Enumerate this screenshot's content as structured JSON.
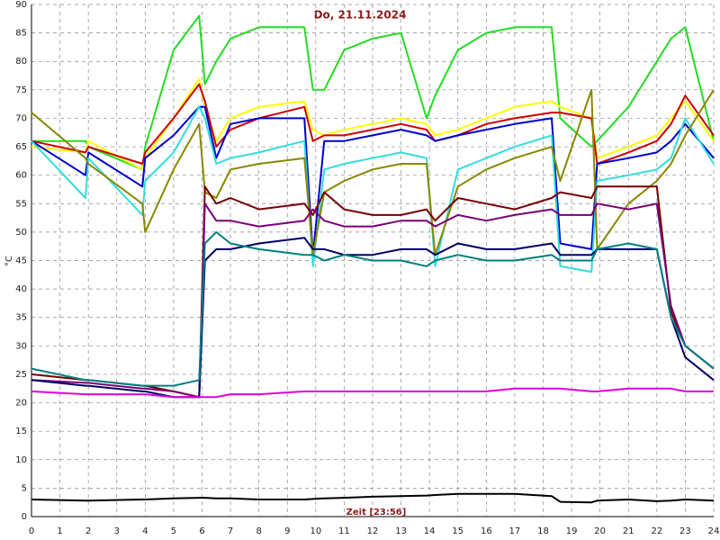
{
  "chart_data": {
    "type": "line",
    "title": "Do, 21.11.2024",
    "xlabel": "Zeit [23:56]",
    "ylabel": "°C",
    "grid": true,
    "x": [
      0,
      1.9,
      2,
      3.9,
      4,
      5,
      5.9,
      6.1,
      6.5,
      7,
      8,
      9.6,
      9.9,
      10.3,
      11,
      12,
      13,
      13.9,
      14.2,
      15,
      16,
      17,
      18.3,
      18.6,
      19.7,
      19.9,
      21,
      22,
      22.5,
      23,
      24
    ],
    "xlim": [
      0,
      24
    ],
    "xticks": [
      0,
      1,
      2,
      3,
      4,
      5,
      6,
      7,
      8,
      9,
      10,
      11,
      12,
      13,
      14,
      15,
      16,
      17,
      18,
      19,
      20,
      21,
      22,
      23,
      24
    ],
    "ylim": [
      0,
      90
    ],
    "yticks": [
      0,
      5,
      10,
      15,
      20,
      25,
      30,
      35,
      40,
      45,
      50,
      55,
      60,
      65,
      70,
      75,
      80,
      85,
      90
    ],
    "series": [
      {
        "color": "#22dd22",
        "values": [
          66,
          66,
          65,
          61,
          65,
          82,
          88,
          76,
          80,
          84,
          86,
          86,
          75,
          75,
          82,
          84,
          85,
          70,
          74,
          82,
          85,
          86,
          86,
          70,
          65,
          66,
          72,
          80,
          84,
          86,
          66
        ]
      },
      {
        "color": "#ffff00",
        "values": [
          65,
          64,
          66,
          61,
          63,
          70,
          77,
          72,
          66,
          70,
          72,
          73,
          68,
          67,
          68,
          69,
          70,
          69,
          67,
          68,
          70,
          72,
          73,
          72,
          70,
          63,
          65,
          67,
          70,
          73,
          66
        ]
      },
      {
        "color": "#cc0000",
        "values": [
          66,
          64,
          65,
          62,
          64,
          70,
          76,
          73,
          65,
          68,
          70,
          72,
          66,
          67,
          67,
          68,
          69,
          68,
          66,
          67,
          69,
          70,
          71,
          71,
          70,
          62,
          64,
          66,
          69,
          74,
          67
        ]
      },
      {
        "color": "#0000cc",
        "values": [
          66,
          60,
          64,
          58,
          63,
          67,
          72,
          72,
          63,
          69,
          70,
          70,
          46,
          66,
          66,
          67,
          68,
          67,
          66,
          67,
          68,
          69,
          70,
          48,
          47,
          62,
          63,
          64,
          66,
          69,
          63
        ]
      },
      {
        "color": "#33dddd",
        "values": [
          66,
          56,
          63,
          53,
          59,
          64,
          72,
          70,
          62,
          63,
          64,
          66,
          44,
          61,
          62,
          63,
          64,
          63,
          44,
          61,
          63,
          65,
          67,
          44,
          43,
          59,
          60,
          61,
          63,
          70,
          62
        ]
      },
      {
        "color": "#888800",
        "values": [
          71,
          63,
          62,
          55,
          50,
          61,
          69,
          57,
          56,
          61,
          62,
          63,
          46,
          57,
          59,
          61,
          62,
          62,
          46,
          58,
          61,
          63,
          65,
          59,
          75,
          47,
          55,
          59,
          62,
          67,
          75
        ]
      },
      {
        "color": "#770000",
        "values": [
          25,
          24,
          24,
          23,
          23,
          22,
          21,
          58,
          55,
          56,
          54,
          55,
          53,
          57,
          54,
          53,
          53,
          54,
          52,
          56,
          55,
          54,
          56,
          57,
          56,
          58,
          58,
          58,
          36,
          30,
          26
        ]
      },
      {
        "color": "#770077",
        "values": [
          24,
          23.5,
          23.5,
          22.5,
          22.5,
          22,
          21,
          55,
          52,
          52,
          51,
          52,
          54,
          52,
          51,
          51,
          52,
          52,
          51,
          53,
          52,
          53,
          54,
          53,
          53,
          55,
          54,
          55,
          37,
          30,
          26
        ]
      },
      {
        "color": "#000066",
        "values": [
          24,
          23,
          23,
          22,
          22,
          21,
          21,
          45,
          47,
          47,
          48,
          49,
          47,
          47,
          46,
          46,
          47,
          47,
          46,
          48,
          47,
          47,
          48,
          46,
          46,
          47,
          47,
          47,
          35,
          28,
          24
        ]
      },
      {
        "color": "#008080",
        "values": [
          26,
          24,
          24,
          23,
          23,
          23,
          24,
          48,
          50,
          48,
          47,
          46,
          46,
          45,
          46,
          45,
          45,
          44,
          45,
          46,
          45,
          45,
          46,
          45,
          45,
          47,
          48,
          47,
          35,
          30,
          26
        ]
      },
      {
        "color": "#dd00dd",
        "values": [
          22,
          21.5,
          21.5,
          21.5,
          21.5,
          21,
          21,
          21,
          21,
          21.5,
          21.5,
          22,
          22,
          22,
          22,
          22,
          22,
          22,
          22,
          22,
          22,
          22.5,
          22.5,
          22.5,
          22,
          22,
          22.5,
          22.5,
          22.5,
          22,
          22
        ]
      },
      {
        "color": "#000000",
        "values": [
          3,
          2.8,
          2.8,
          3,
          3,
          3.2,
          3.3,
          3.3,
          3.2,
          3.2,
          3,
          3,
          3.1,
          3.2,
          3.3,
          3.5,
          3.6,
          3.7,
          3.8,
          4,
          4,
          4,
          3.6,
          2.6,
          2.5,
          2.8,
          3,
          2.7,
          2.8,
          3,
          2.8
        ]
      }
    ]
  }
}
